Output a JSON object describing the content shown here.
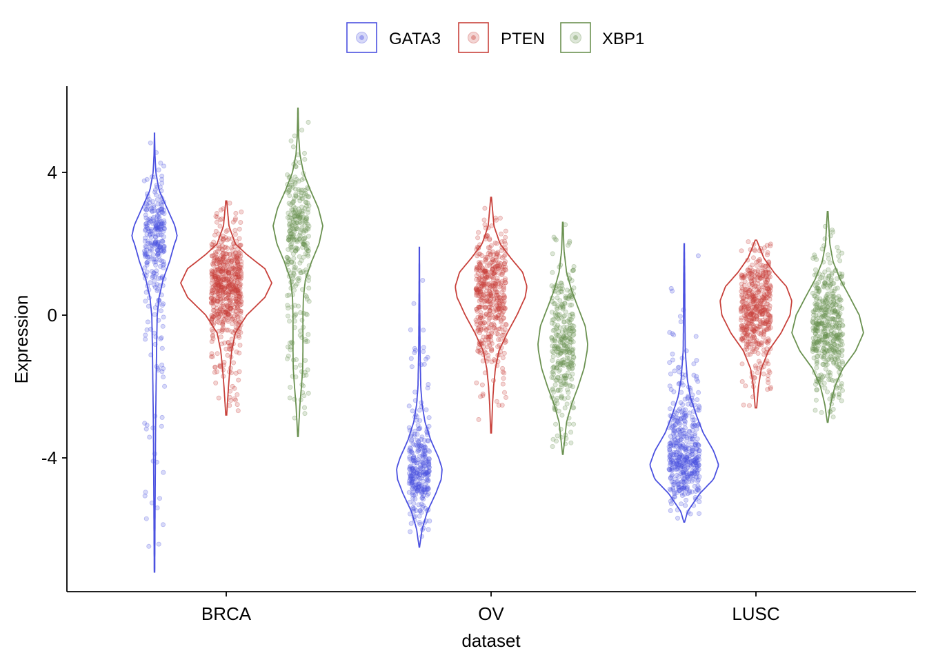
{
  "chart_data": {
    "type": "violin",
    "xlabel": "dataset",
    "ylabel": "Expression",
    "ylim": [
      -7.8,
      6.3
    ],
    "yticks": [
      -4,
      0,
      4
    ],
    "ytick_labels": [
      "-4",
      "0",
      "4"
    ],
    "categories": [
      "BRCA",
      "OV",
      "LUSC"
    ],
    "legend_position": "top",
    "series": [
      {
        "name": "GATA3",
        "color": "#4a50e0",
        "groups": [
          {
            "category": "BRCA",
            "min": -7.2,
            "max": 5.1,
            "mode": 2.2,
            "density": [
              [
                -7.2,
                0.01
              ],
              [
                -6,
                0.02
              ],
              [
                -5,
                0.03
              ],
              [
                -4,
                0.04
              ],
              [
                -3,
                0.05
              ],
              [
                -2,
                0.07
              ],
              [
                -1,
                0.09
              ],
              [
                0,
                0.12
              ],
              [
                0.5,
                0.2
              ],
              [
                1,
                0.38
              ],
              [
                1.5,
                0.66
              ],
              [
                2,
                0.88
              ],
              [
                2.2,
                1.0
              ],
              [
                2.5,
                0.9
              ],
              [
                3,
                0.55
              ],
              [
                3.5,
                0.2
              ],
              [
                4,
                0.06
              ],
              [
                4.5,
                0.02
              ],
              [
                5.1,
                0.005
              ]
            ]
          },
          {
            "category": "OV",
            "min": -6.5,
            "max": 1.9,
            "mode": -4.3,
            "density": [
              [
                -6.5,
                0.01
              ],
              [
                -6,
                0.12
              ],
              [
                -5.5,
                0.35
              ],
              [
                -5,
                0.72
              ],
              [
                -4.6,
                0.96
              ],
              [
                -4.3,
                1.0
              ],
              [
                -4,
                0.85
              ],
              [
                -3.5,
                0.5
              ],
              [
                -3,
                0.25
              ],
              [
                -2.5,
                0.12
              ],
              [
                -2,
                0.06
              ],
              [
                -1,
                0.03
              ],
              [
                0,
                0.02
              ],
              [
                1,
                0.01
              ],
              [
                1.9,
                0.005
              ]
            ]
          },
          {
            "category": "LUSC",
            "min": -5.8,
            "max": 2.0,
            "mode": -4.2,
            "density": [
              [
                -5.8,
                0.01
              ],
              [
                -5.5,
                0.1
              ],
              [
                -5,
                0.45
              ],
              [
                -4.6,
                0.85
              ],
              [
                -4.2,
                1.0
              ],
              [
                -3.8,
                0.85
              ],
              [
                -3.3,
                0.55
              ],
              [
                -2.8,
                0.35
              ],
              [
                -2.3,
                0.18
              ],
              [
                -1.8,
                0.09
              ],
              [
                -1,
                0.03
              ],
              [
                0,
                0.02
              ],
              [
                1,
                0.015
              ],
              [
                2.0,
                0.005
              ]
            ]
          }
        ]
      },
      {
        "name": "PTEN",
        "color": "#c8403a",
        "groups": [
          {
            "category": "BRCA",
            "min": -2.8,
            "max": 3.2,
            "mode": 0.9,
            "density": [
              [
                -2.8,
                0.01
              ],
              [
                -2,
                0.05
              ],
              [
                -1.5,
                0.08
              ],
              [
                -1,
                0.12
              ],
              [
                -0.5,
                0.2
              ],
              [
                0,
                0.45
              ],
              [
                0.5,
                0.85
              ],
              [
                0.9,
                1.0
              ],
              [
                1.3,
                0.85
              ],
              [
                1.7,
                0.45
              ],
              [
                2,
                0.2
              ],
              [
                2.5,
                0.06
              ],
              [
                3.2,
                0.01
              ]
            ]
          },
          {
            "category": "OV",
            "min": -3.3,
            "max": 3.3,
            "mode": 0.8,
            "density": [
              [
                -3.3,
                0.01
              ],
              [
                -2.5,
                0.04
              ],
              [
                -2,
                0.07
              ],
              [
                -1.5,
                0.12
              ],
              [
                -1,
                0.22
              ],
              [
                -0.5,
                0.45
              ],
              [
                0,
                0.72
              ],
              [
                0.5,
                0.95
              ],
              [
                0.8,
                1.0
              ],
              [
                1.2,
                0.88
              ],
              [
                1.6,
                0.55
              ],
              [
                2,
                0.25
              ],
              [
                2.5,
                0.08
              ],
              [
                3.3,
                0.01
              ]
            ]
          },
          {
            "category": "LUSC",
            "min": -2.6,
            "max": 2.1,
            "mode": 0.4,
            "density": [
              [
                -2.6,
                0.02
              ],
              [
                -2,
                0.07
              ],
              [
                -1.5,
                0.15
              ],
              [
                -1,
                0.35
              ],
              [
                -0.5,
                0.7
              ],
              [
                0,
                0.95
              ],
              [
                0.4,
                1.0
              ],
              [
                0.8,
                0.85
              ],
              [
                1.2,
                0.5
              ],
              [
                1.6,
                0.22
              ],
              [
                2.1,
                0.02
              ]
            ]
          }
        ]
      },
      {
        "name": "XBP1",
        "color": "#6a9150",
        "groups": [
          {
            "category": "BRCA",
            "min": -3.4,
            "max": 5.8,
            "mode": 2.5,
            "density": [
              [
                -3.4,
                0.01
              ],
              [
                -2.5,
                0.08
              ],
              [
                -2,
                0.14
              ],
              [
                -1.5,
                0.19
              ],
              [
                -1,
                0.2
              ],
              [
                -0.5,
                0.2
              ],
              [
                0,
                0.2
              ],
              [
                0.5,
                0.22
              ],
              [
                1,
                0.3
              ],
              [
                1.5,
                0.55
              ],
              [
                2,
                0.85
              ],
              [
                2.5,
                1.0
              ],
              [
                3,
                0.82
              ],
              [
                3.5,
                0.5
              ],
              [
                4,
                0.22
              ],
              [
                4.5,
                0.08
              ],
              [
                5,
                0.03
              ],
              [
                5.8,
                0.005
              ]
            ]
          },
          {
            "category": "OV",
            "min": -3.9,
            "max": 2.6,
            "mode": -0.8,
            "density": [
              [
                -3.9,
                0.01
              ],
              [
                -3,
                0.15
              ],
              [
                -2.5,
                0.35
              ],
              [
                -2,
                0.62
              ],
              [
                -1.5,
                0.85
              ],
              [
                -1,
                0.98
              ],
              [
                -0.8,
                1.0
              ],
              [
                -0.3,
                0.9
              ],
              [
                0.2,
                0.62
              ],
              [
                0.7,
                0.35
              ],
              [
                1.2,
                0.15
              ],
              [
                1.8,
                0.05
              ],
              [
                2.6,
                0.01
              ]
            ]
          },
          {
            "category": "LUSC",
            "min": -3.0,
            "max": 2.9,
            "mode": -0.5,
            "density": [
              [
                -3.0,
                0.01
              ],
              [
                -2.5,
                0.08
              ],
              [
                -2,
                0.2
              ],
              [
                -1.5,
                0.42
              ],
              [
                -1,
                0.78
              ],
              [
                -0.5,
                1.0
              ],
              [
                0,
                0.88
              ],
              [
                0.5,
                0.62
              ],
              [
                1,
                0.35
              ],
              [
                1.5,
                0.15
              ],
              [
                2,
                0.06
              ],
              [
                2.9,
                0.01
              ]
            ]
          }
        ]
      }
    ]
  }
}
